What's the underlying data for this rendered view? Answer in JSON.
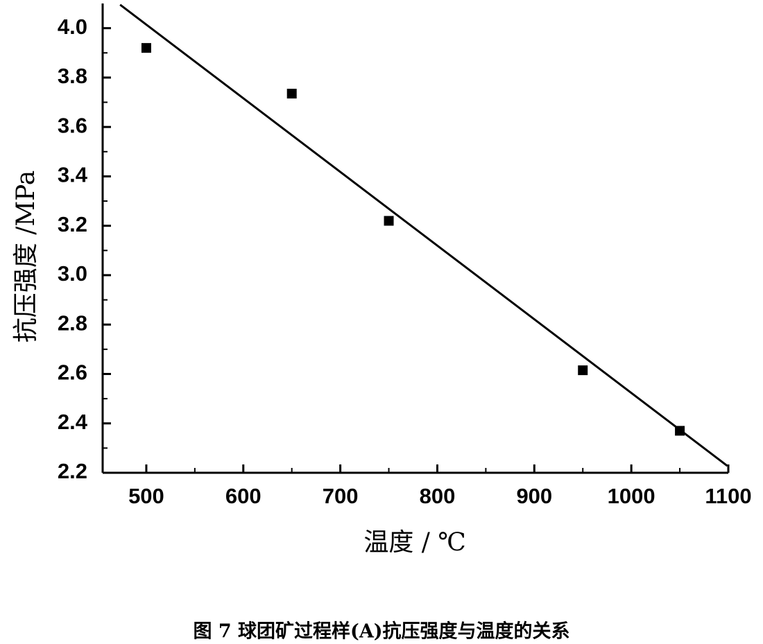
{
  "chart_data": {
    "type": "scatter",
    "caption": "图 7  球团矿过程样(A)抗压强度与温度的关系",
    "x_label": "温度 / ℃",
    "y_label": "抗压强度 /MPa",
    "xlim": [
      455,
      1100
    ],
    "ylim": [
      2.2,
      4.1
    ],
    "xticks": [
      500,
      600,
      700,
      800,
      900,
      1000,
      1100
    ],
    "yticks": [
      {
        "value": 2.2,
        "label": "2.2"
      },
      {
        "value": 2.4,
        "label": "2.4"
      },
      {
        "value": 2.6,
        "label": "2.6"
      },
      {
        "value": 2.8,
        "label": "2.8"
      },
      {
        "value": 3.0,
        "label": "3.0"
      },
      {
        "value": 3.2,
        "label": "3.2"
      },
      {
        "value": 3.4,
        "label": "3.4"
      },
      {
        "value": 3.6,
        "label": "3.6"
      },
      {
        "value": 3.8,
        "label": "3.8"
      },
      {
        "value": 4.0,
        "label": "4.0"
      }
    ],
    "xminorticks": [
      550,
      650,
      750,
      850,
      950,
      1050
    ],
    "yminorticks": [
      2.3,
      2.5,
      2.7,
      2.9,
      3.1,
      3.3,
      3.5,
      3.7,
      3.9
    ],
    "series": [
      {
        "color": "#000000",
        "marker": "square",
        "x": [
          500,
          650,
          750,
          950,
          1050
        ],
        "values": [
          3.92,
          3.735,
          3.22,
          2.615,
          2.37
        ]
      },
      {
        "color": "#000000",
        "marker": "line",
        "x": [
          473,
          1099
        ],
        "values": [
          4.095,
          2.228
        ]
      }
    ]
  }
}
